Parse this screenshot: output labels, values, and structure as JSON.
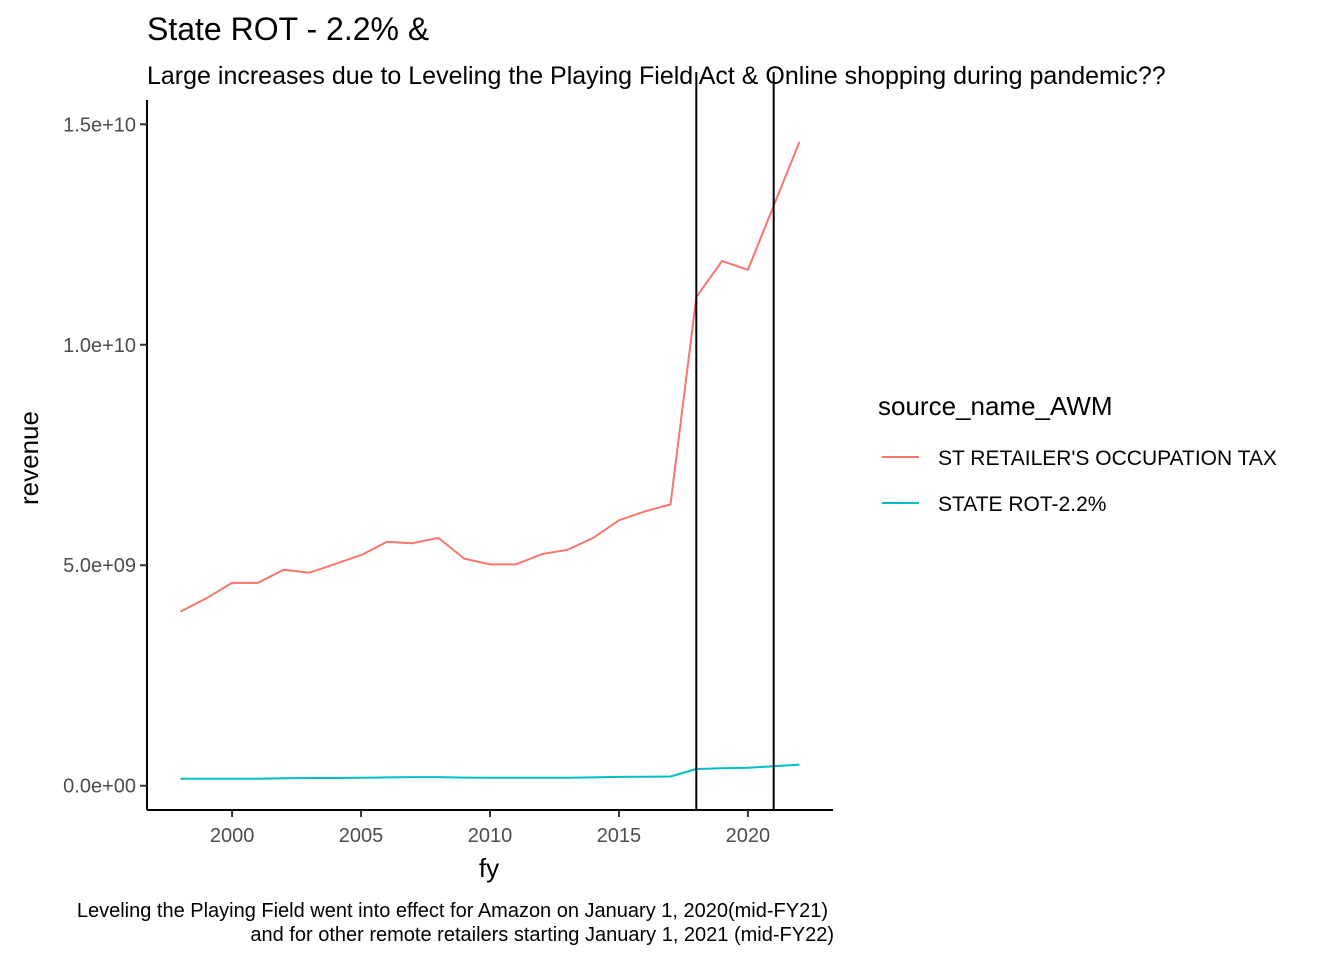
{
  "chart_data": {
    "type": "line",
    "title": "State ROT - 2.2% &",
    "subtitle": "Large increases due to Leveling the Playing Field Act & Online shopping during pandemic??",
    "xlabel": "fy",
    "ylabel": "revenue",
    "xlim": [
      1996.7,
      2023.3
    ],
    "ylim": [
      -550000000,
      15550000000
    ],
    "x_ticks": [
      2000,
      2005,
      2010,
      2015,
      2020
    ],
    "x_tick_labels": [
      "2000",
      "2005",
      "2010",
      "2015",
      "2020"
    ],
    "y_ticks": [
      0,
      5000000000,
      10000000000,
      15000000000
    ],
    "y_tick_labels": [
      "0.0e+00",
      "5.0e+09",
      "1.0e+10",
      "1.5e+10"
    ],
    "grid": false,
    "legend": {
      "title": "source_name_AWM",
      "position": "right"
    },
    "vlines": [
      2018,
      2021
    ],
    "x": [
      1998,
      1999,
      2000,
      2001,
      2002,
      2003,
      2004,
      2005,
      2006,
      2007,
      2008,
      2009,
      2010,
      2011,
      2012,
      2013,
      2014,
      2015,
      2016,
      2017,
      2018,
      2019,
      2020,
      2021,
      2022
    ],
    "series": [
      {
        "name": "ST RETAILER'S OCCUPATION TAX",
        "color": "#F8766D",
        "values": [
          3950000000,
          4250000000,
          4600000000,
          4600000000,
          4900000000,
          4830000000,
          5030000000,
          5230000000,
          5530000000,
          5500000000,
          5620000000,
          5150000000,
          5020000000,
          5020000000,
          5250000000,
          5350000000,
          5620000000,
          6020000000,
          6220000000,
          6380000000,
          11080000000,
          11900000000,
          11700000000,
          13150000000,
          14600000000
        ]
      },
      {
        "name": "STATE ROT-2.2%",
        "color": "#00BFC4",
        "values": [
          160000000,
          160000000,
          160000000,
          160000000,
          170000000,
          175000000,
          175000000,
          180000000,
          190000000,
          195000000,
          195000000,
          185000000,
          180000000,
          180000000,
          180000000,
          180000000,
          190000000,
          200000000,
          205000000,
          210000000,
          380000000,
          395000000,
          410000000,
          440000000,
          480000000
        ]
      }
    ],
    "caption": [
      "Leveling the Playing Field went into effect for Amazon on January 1, 2020(mid-FY21)",
      "and for other remote retailers starting January 1, 2021 (mid-FY22)"
    ]
  }
}
